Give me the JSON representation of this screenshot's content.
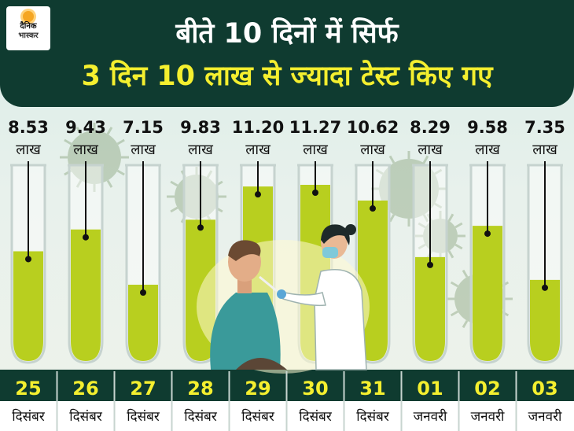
{
  "logo": {
    "line1": "दैनिक",
    "line2": "भास्कर"
  },
  "header": {
    "title_line1": "बीते 10 दिनों में सिर्फ",
    "title_line2": "3 दिन 10 लाख से ज्यादा टेस्ट किए गए"
  },
  "colors": {
    "header_bg": "#0f3b30",
    "title_line1": "#ffffff",
    "title_line2": "#f4ef2f",
    "tube_fill": "#b8cf1f",
    "day_text": "#f4ef2f",
    "month_text": "#111111"
  },
  "chart_data": {
    "type": "bar",
    "categories": [
      "25 दिसंबर",
      "26 दिसंबर",
      "27 दिसंबर",
      "28 दिसंबर",
      "29 दिसंबर",
      "30 दिसंबर",
      "31 दिसंबर",
      "01 जनवरी",
      "02 जनवरी",
      "03 जनवरी"
    ],
    "days": [
      "25",
      "26",
      "27",
      "28",
      "29",
      "30",
      "31",
      "01",
      "02",
      "03"
    ],
    "months": [
      "दिसंबर",
      "दिसंबर",
      "दिसंबर",
      "दिसंबर",
      "दिसंबर",
      "दिसंबर",
      "दिसंबर",
      "जनवरी",
      "जनवरी",
      "जनवरी"
    ],
    "values": [
      8.53,
      9.43,
      7.15,
      9.83,
      11.2,
      11.27,
      10.62,
      8.29,
      9.58,
      7.35
    ],
    "value_labels": [
      "8.53",
      "9.43",
      "7.15",
      "9.83",
      "11.20",
      "11.27",
      "10.62",
      "8.29",
      "9.58",
      "7.35"
    ],
    "unit_label": "लाख",
    "title": "बीते 10 दिनों में सिर्फ 3 दिन 10 लाख से ज्यादा टेस्ट किए गए",
    "xlabel": "",
    "ylabel": "",
    "legend": "none",
    "grid": false
  }
}
